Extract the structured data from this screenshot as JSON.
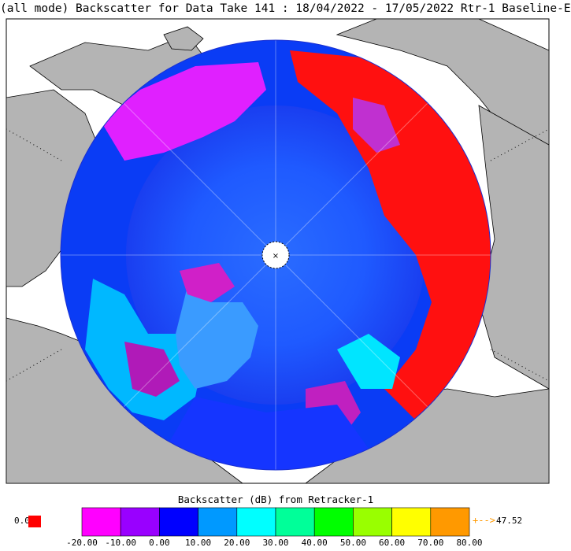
{
  "title": "(all mode) Backscatter for Data Take 141 : 18/04/2022 - 17/05/2022 Rtr-1 Baseline-E",
  "legend": {
    "title": "Backscatter (dB) from Retracker-1",
    "ticks": [
      "-20.00",
      "-10.00",
      "0.00",
      "10.00",
      "20.00",
      "30.00",
      "40.00",
      "50.00",
      "60.00",
      "70.00",
      "80.00"
    ],
    "bins": [
      {
        "color": "#ff00ff"
      },
      {
        "color": "#9900ff"
      },
      {
        "color": "#0000ff"
      },
      {
        "color": "#0099ff"
      },
      {
        "color": "#00ffff"
      },
      {
        "color": "#00ff99"
      },
      {
        "color": "#00ff00"
      },
      {
        "color": "#99ff00"
      },
      {
        "color": "#ffff00"
      },
      {
        "color": "#ff9900"
      }
    ],
    "under_value": "0.0",
    "under_color": "#ff0000",
    "over_arrow": "+-->",
    "over_value": "47.52",
    "over_color": "#ff9900"
  },
  "map": {
    "projection": "north polar stereographic",
    "ocean_color": "#ffffff",
    "land_color": "#b4b4b4",
    "coast_color": "#000000",
    "pole_hole_label": "×"
  }
}
